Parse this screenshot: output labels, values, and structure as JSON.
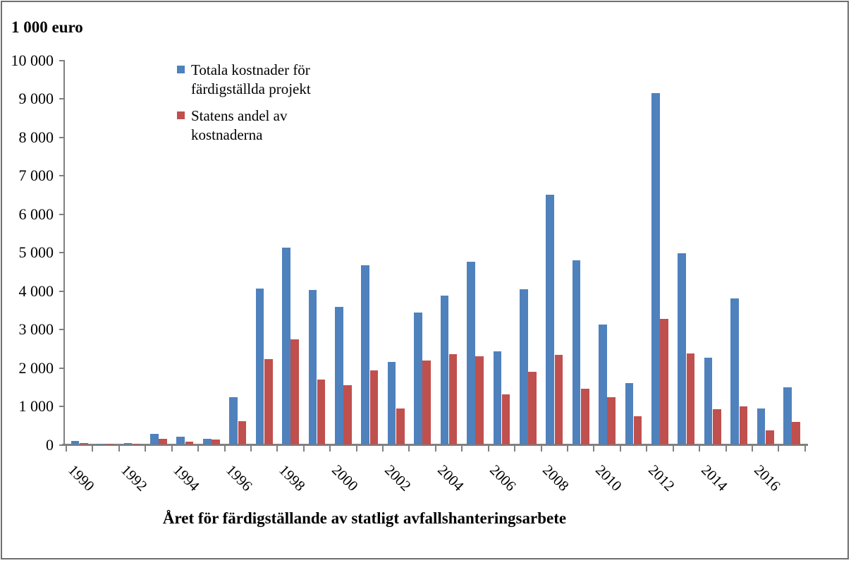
{
  "chart_data": {
    "type": "bar",
    "y_axis_unit_title": "1 000 euro",
    "xlabel": "Året för färdigställande av statligt avfallshanteringsarbete",
    "ylabel": "",
    "ylim": [
      0,
      10000
    ],
    "ytick_step": 1000,
    "ytick_labels": [
      "0",
      "1 000",
      "2 000",
      "3 000",
      "4 000",
      "5 000",
      "6 000",
      "7 000",
      "8 000",
      "9 000",
      "10 000"
    ],
    "grid": "off",
    "legend_position": "inside-top-left",
    "categories": [
      "1990",
      "1991",
      "1992",
      "1993",
      "1994",
      "1995",
      "1996",
      "1997",
      "1998",
      "1999",
      "2000",
      "2001",
      "2002",
      "2003",
      "2004",
      "2005",
      "2006",
      "2007",
      "2008",
      "2009",
      "2010",
      "2011",
      "2012",
      "2013",
      "2014",
      "2015",
      "2016",
      "2017"
    ],
    "xtick_labels_shown": [
      "1990",
      "1992",
      "1994",
      "1996",
      "1998",
      "2000",
      "2002",
      "2004",
      "2006",
      "2008",
      "2010",
      "2012",
      "2014",
      "2016"
    ],
    "series": [
      {
        "name": "Totala kostnader för färdigställda projekt",
        "color": "#4F81BD",
        "values": [
          90,
          20,
          45,
          280,
          200,
          150,
          1230,
          4050,
          5130,
          4030,
          3590,
          4660,
          2140,
          3430,
          3880,
          4760,
          2430,
          4040,
          6500,
          4800,
          3130,
          1590,
          9150,
          4980,
          2250,
          3800,
          940,
          1490
        ]
      },
      {
        "name": "Statens andel av kostnaderna",
        "color": "#C0504D",
        "values": [
          35,
          10,
          15,
          150,
          80,
          135,
          600,
          2220,
          2730,
          1690,
          1540,
          1930,
          930,
          2180,
          2350,
          2290,
          1310,
          1900,
          2340,
          1450,
          1230,
          740,
          3270,
          2370,
          920,
          1000,
          370,
          590
        ]
      }
    ]
  }
}
